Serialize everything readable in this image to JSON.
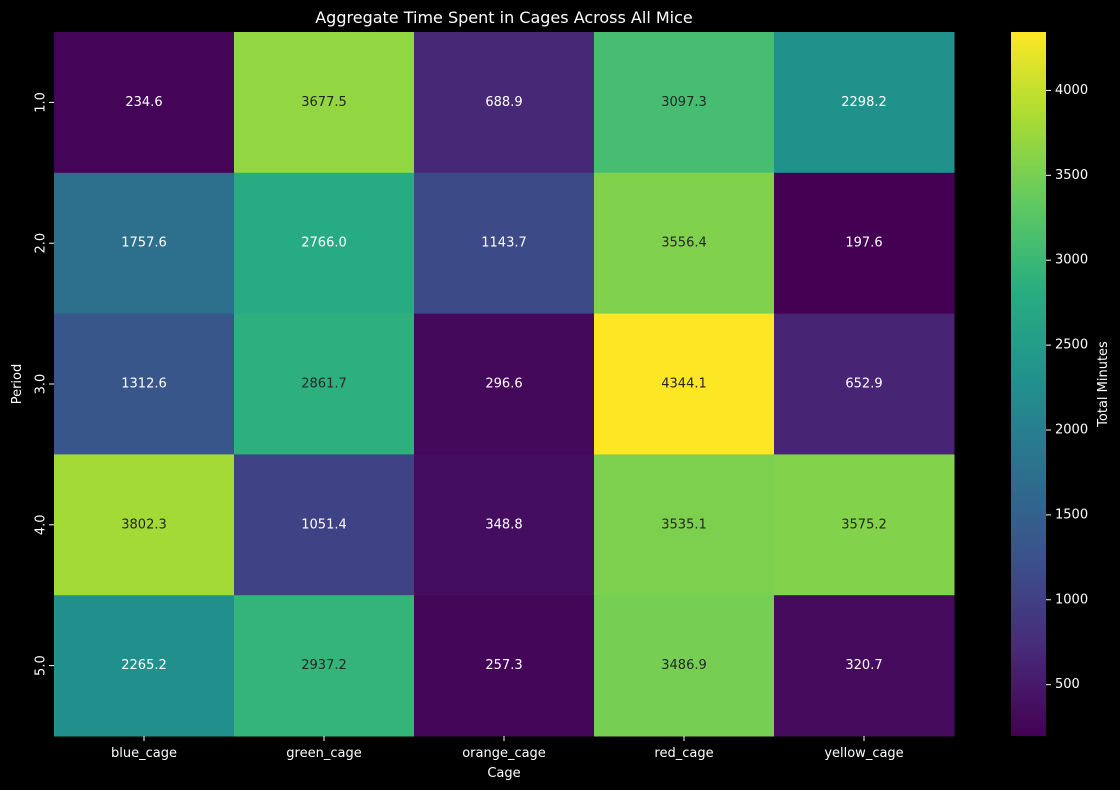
{
  "chart_data": {
    "type": "heatmap",
    "title": "Aggregate Time Spent in Cages Across All Mice",
    "xlabel": "Cage",
    "ylabel": "Period",
    "x_categories": [
      "blue_cage",
      "green_cage",
      "orange_cage",
      "red_cage",
      "yellow_cage"
    ],
    "y_categories": [
      "1.0",
      "2.0",
      "3.0",
      "4.0",
      "5.0"
    ],
    "values": [
      [
        234.6,
        3677.5,
        688.9,
        3097.3,
        2298.2
      ],
      [
        1757.6,
        2766.0,
        1143.7,
        3556.4,
        197.6
      ],
      [
        1312.6,
        2861.7,
        296.6,
        4344.1,
        652.9
      ],
      [
        3802.3,
        1051.4,
        348.8,
        3535.1,
        3575.2
      ],
      [
        2265.2,
        2937.2,
        257.3,
        3486.9,
        320.7
      ]
    ],
    "value_format": "1 decimal",
    "colormap": "viridis",
    "colorbar": {
      "label": "Total Minutes",
      "range": [
        197.6,
        4344.1
      ],
      "ticks": [
        500,
        1000,
        1500,
        2000,
        2500,
        3000,
        3500,
        4000
      ],
      "placement": "right"
    },
    "background": "#000000",
    "grid": false
  }
}
